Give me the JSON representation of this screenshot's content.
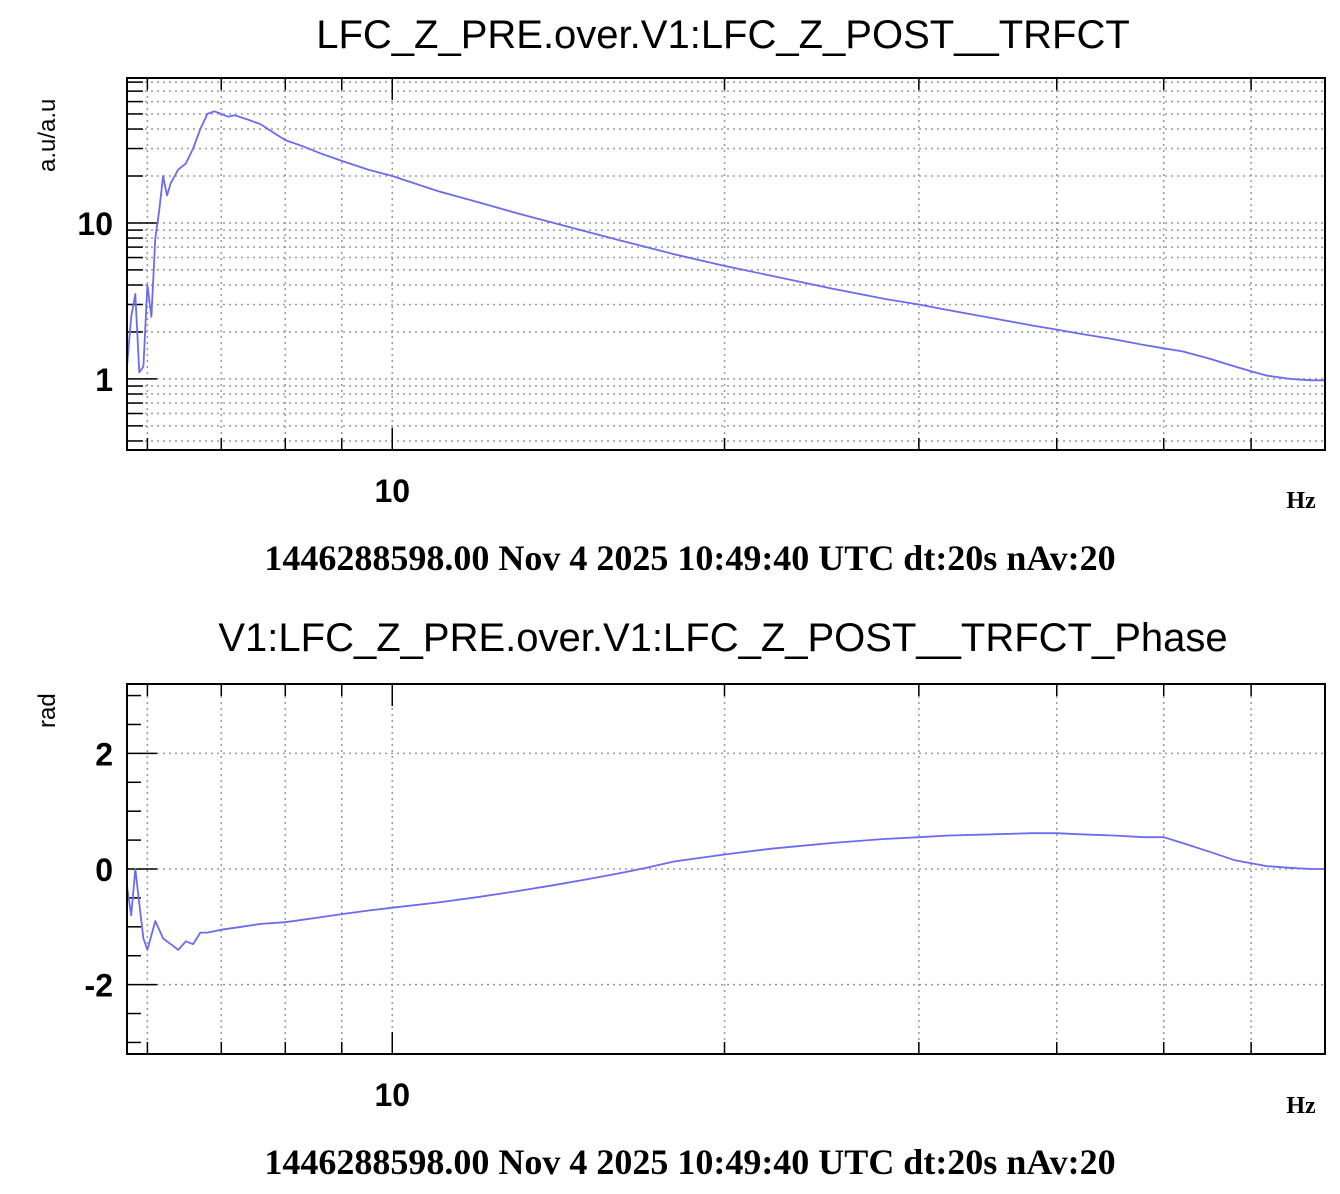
{
  "colors": {
    "trace": "#6b6bef",
    "grid": "#9a9a9a",
    "frame": "#000000"
  },
  "chart_data": [
    {
      "type": "line",
      "title": "LFC_Z_PRE.over.V1:LFC_Z_POST__TRFCT",
      "xlabel": "Hz",
      "ylabel": "a.u/a.u",
      "footer": "1446288598.00 Nov 4 2025 10:49:40 UTC dt:20s nAv:20",
      "x_scale": "log",
      "y_scale": "log",
      "xlim": [
        5.75,
        70
      ],
      "ylim": [
        0.35,
        85
      ],
      "grid": true,
      "x_ticks": [
        {
          "value": 10,
          "label": "10"
        }
      ],
      "y_ticks": [
        {
          "value": 1,
          "label": "1"
        },
        {
          "value": 10,
          "label": "10"
        }
      ],
      "series": [
        {
          "x": [
            5.75,
            5.8,
            5.85,
            5.9,
            5.95,
            6.0,
            6.05,
            6.1,
            6.15,
            6.2,
            6.25,
            6.3,
            6.4,
            6.5,
            6.6,
            6.7,
            6.8,
            6.9,
            7.0,
            7.1,
            7.2,
            7.4,
            7.6,
            7.8,
            8.0,
            8.3,
            8.6,
            9.0,
            9.5,
            10,
            11,
            12,
            13,
            14,
            15,
            16,
            17,
            18,
            20,
            22,
            25,
            28,
            30,
            32,
            35,
            38,
            40,
            42,
            45,
            48,
            50,
            52,
            55,
            58,
            60,
            62,
            65,
            68,
            70
          ],
          "values": [
            1.2,
            2.5,
            3.5,
            1.1,
            1.2,
            4.0,
            2.5,
            8.0,
            12,
            20,
            15,
            18,
            22,
            24,
            30,
            40,
            50,
            52,
            50,
            48,
            49,
            46,
            43,
            38,
            34,
            31,
            28,
            25,
            22,
            20,
            16,
            13.5,
            11.5,
            10.0,
            8.8,
            7.8,
            7.0,
            6.3,
            5.3,
            4.6,
            3.8,
            3.25,
            3.0,
            2.75,
            2.45,
            2.2,
            2.07,
            1.95,
            1.8,
            1.65,
            1.57,
            1.5,
            1.35,
            1.2,
            1.12,
            1.05,
            1.0,
            0.98,
            0.98
          ]
        }
      ]
    },
    {
      "type": "line",
      "title": "V1:LFC_Z_PRE.over.V1:LFC_Z_POST__TRFCT_Phase",
      "xlabel": "Hz",
      "ylabel": "rad",
      "footer": "1446288598.00 Nov 4 2025 10:49:40 UTC dt:20s nAv:20",
      "x_scale": "log",
      "y_scale": "linear",
      "xlim": [
        5.75,
        70
      ],
      "ylim": [
        -3.2,
        3.2
      ],
      "grid": true,
      "x_ticks": [
        {
          "value": 10,
          "label": "10"
        }
      ],
      "y_ticks": [
        {
          "value": -2,
          "label": "-2"
        },
        {
          "value": 0,
          "label": "0"
        },
        {
          "value": 2,
          "label": "2"
        }
      ],
      "series": [
        {
          "x": [
            5.75,
            5.8,
            5.85,
            5.9,
            5.95,
            6.0,
            6.1,
            6.2,
            6.3,
            6.4,
            6.5,
            6.6,
            6.7,
            6.8,
            7.0,
            7.3,
            7.6,
            8.0,
            8.5,
            9.0,
            9.5,
            10,
            11,
            12,
            13,
            14,
            15,
            16,
            17,
            18,
            20,
            22,
            25,
            28,
            30,
            32,
            35,
            38,
            40,
            42,
            45,
            48,
            50,
            52,
            55,
            58,
            60,
            62,
            65,
            68,
            70
          ],
          "values": [
            -0.3,
            -0.8,
            0.0,
            -0.6,
            -1.2,
            -1.4,
            -0.9,
            -1.2,
            -1.3,
            -1.4,
            -1.25,
            -1.3,
            -1.1,
            -1.1,
            -1.05,
            -1.0,
            -0.95,
            -0.92,
            -0.85,
            -0.78,
            -0.72,
            -0.67,
            -0.58,
            -0.48,
            -0.38,
            -0.28,
            -0.18,
            -0.08,
            0.02,
            0.13,
            0.25,
            0.35,
            0.45,
            0.52,
            0.55,
            0.58,
            0.6,
            0.62,
            0.62,
            0.6,
            0.58,
            0.55,
            0.55,
            0.45,
            0.3,
            0.15,
            0.1,
            0.05,
            0.02,
            0.0,
            0.0
          ]
        }
      ]
    }
  ]
}
